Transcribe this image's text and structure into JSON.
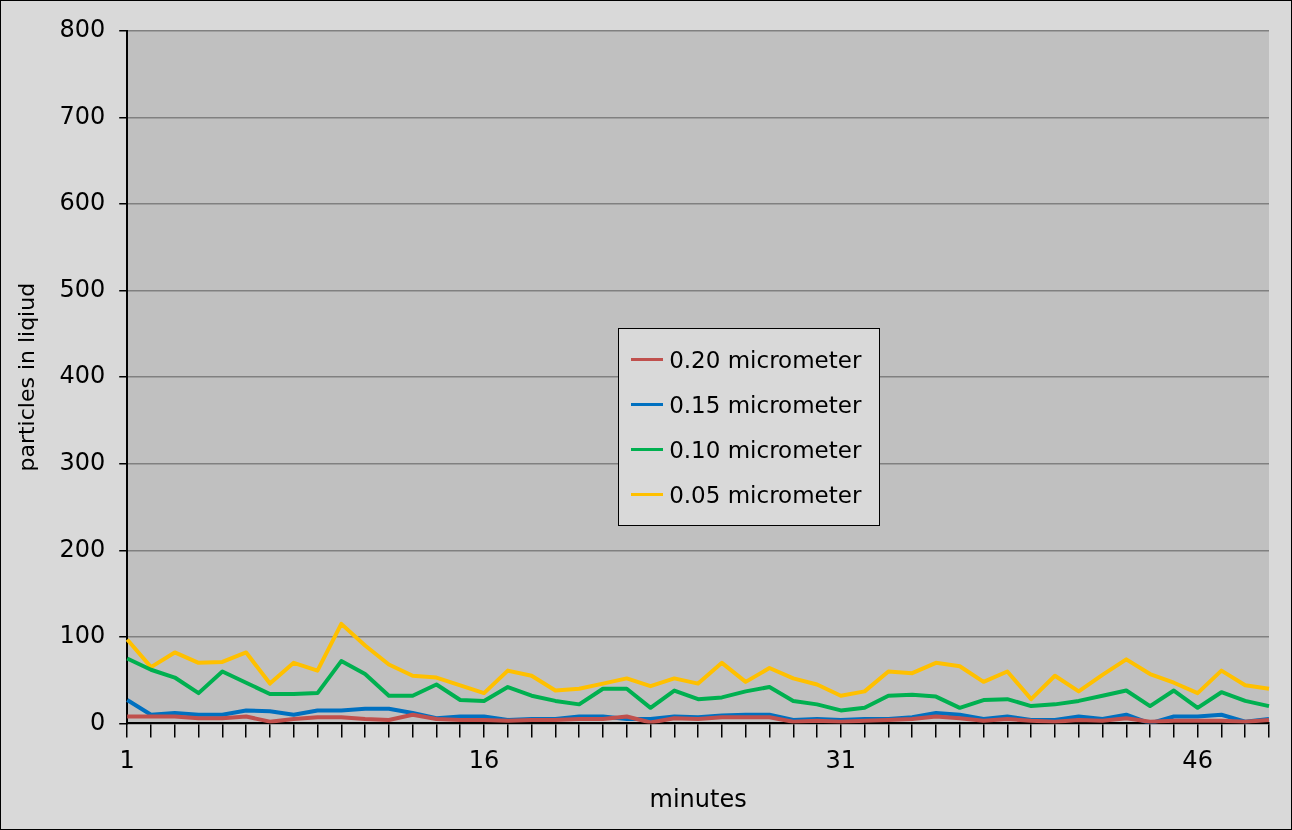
{
  "chart_data": {
    "type": "line",
    "xlabel": "minutes",
    "ylabel": "particles in liqiud",
    "categories": [
      "1",
      null,
      null,
      null,
      null,
      null,
      null,
      null,
      null,
      null,
      null,
      null,
      null,
      null,
      null,
      "16",
      null,
      null,
      null,
      null,
      null,
      null,
      null,
      null,
      null,
      null,
      null,
      null,
      null,
      null,
      "31",
      null,
      null,
      null,
      null,
      null,
      null,
      null,
      null,
      null,
      null,
      null,
      null,
      null,
      null,
      "46",
      null,
      null,
      null
    ],
    "series": [
      {
        "name": "0.20 micrometer",
        "color": "#c0504d",
        "values": [
          8,
          8,
          8,
          6,
          6,
          8,
          2,
          5,
          7,
          7,
          5,
          4,
          10,
          5,
          4,
          4,
          3,
          4,
          4,
          5,
          5,
          8,
          1,
          6,
          5,
          7,
          7,
          7,
          2,
          3,
          2,
          3,
          4,
          5,
          8,
          6,
          3,
          5,
          3,
          2,
          4,
          3,
          6,
          2,
          3,
          3,
          3,
          2,
          4
        ]
      },
      {
        "name": "0.15 micrometer",
        "color": "#0070c0",
        "values": [
          27,
          10,
          12,
          10,
          10,
          15,
          14,
          10,
          15,
          15,
          17,
          17,
          12,
          6,
          8,
          8,
          4,
          5,
          5,
          8,
          8,
          5,
          5,
          8,
          7,
          9,
          10,
          10,
          4,
          5,
          4,
          5,
          5,
          7,
          12,
          10,
          5,
          8,
          4,
          4,
          8,
          5,
          10,
          0,
          8,
          8,
          10,
          2,
          5
        ]
      },
      {
        "name": "0.10 micrometer",
        "color": "#00b050",
        "values": [
          75,
          62,
          53,
          35,
          60,
          47,
          34,
          34,
          35,
          72,
          57,
          32,
          32,
          45,
          27,
          26,
          42,
          32,
          26,
          22,
          40,
          40,
          18,
          38,
          28,
          30,
          37,
          42,
          26,
          22,
          15,
          18,
          32,
          33,
          31,
          18,
          27,
          28,
          20,
          22,
          26,
          32,
          38,
          20,
          38,
          18,
          36,
          26,
          20
        ]
      },
      {
        "name": "0.05 micrometer",
        "color": "#ffc000",
        "values": [
          97,
          65,
          82,
          70,
          71,
          82,
          46,
          70,
          61,
          115,
          90,
          68,
          55,
          53,
          44,
          35,
          61,
          55,
          38,
          40,
          46,
          52,
          43,
          52,
          46,
          70,
          48,
          64,
          52,
          45,
          32,
          37,
          60,
          58,
          70,
          66,
          48,
          60,
          28,
          55,
          37,
          56,
          74,
          57,
          47,
          35,
          61,
          44,
          40
        ]
      }
    ],
    "ylim": [
      0,
      800
    ],
    "yticks": [
      0,
      100,
      200,
      300,
      400,
      500,
      600,
      700,
      800
    ],
    "grid": "y",
    "legend": "center",
    "marker": "none",
    "line_style": "solid"
  }
}
